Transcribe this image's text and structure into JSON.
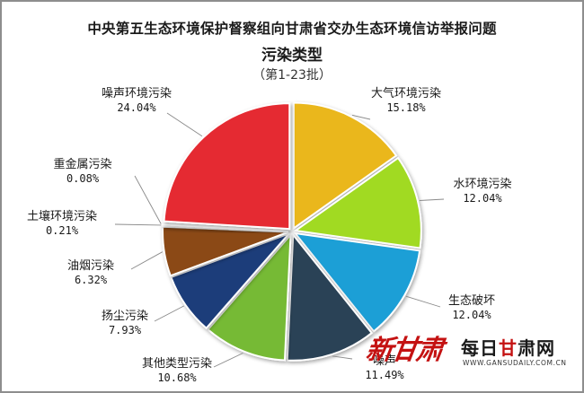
{
  "title": {
    "line1": "中央第五生态环境保护督察组向甘肃省交办生态环境信访举报问题",
    "line2": "污染类型",
    "line3": "（第1-23批）"
  },
  "chart_data": {
    "type": "pie",
    "start_angle_deg": 90,
    "direction": "clockwise",
    "slices": [
      {
        "name": "大气环境污染",
        "pct_label": "15.18%",
        "value": 15.18,
        "color": "#eab71c"
      },
      {
        "name": "水环境污染",
        "pct_label": "12.04%",
        "value": 12.04,
        "color": "#a1da23"
      },
      {
        "name": "生态破坏",
        "pct_label": "12.04%",
        "value": 12.04,
        "color": "#1e9fd6"
      },
      {
        "name": "噪声",
        "pct_label": "11.49%",
        "value": 11.49,
        "color": "#2a4257"
      },
      {
        "name": "其他类型污染",
        "pct_label": "10.68%",
        "value": 10.68,
        "color": "#76ba34"
      },
      {
        "name": "扬尘污染",
        "pct_label": "7.93%",
        "value": 7.93,
        "color": "#1c3c7a"
      },
      {
        "name": "油烟污染",
        "pct_label": "6.32%",
        "value": 6.32,
        "color": "#8b4a12"
      },
      {
        "name": "土壤环境污染",
        "pct_label": "0.21%",
        "value": 0.21,
        "color": "#8a3a5a"
      },
      {
        "name": "重金属污染",
        "pct_label": "0.08%",
        "value": 0.08,
        "color": "#5a5a5a"
      },
      {
        "name": "噪声环境污染",
        "pct_label": "24.04%",
        "value": 24.04,
        "color": "#e52a33"
      }
    ]
  },
  "brand": {
    "logo_text": "新甘肃",
    "name_black": "每日",
    "name_red": "甘",
    "name_tail": "肃网",
    "url": "WWW.GANSUDAILY.COM.CN"
  }
}
